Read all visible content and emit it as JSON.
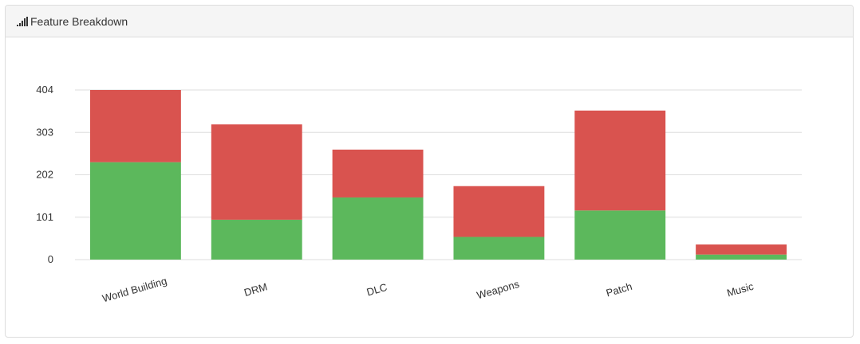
{
  "panel": {
    "title": "Feature Breakdown",
    "icon": "signal-bars-icon"
  },
  "colors": {
    "positive": "#5cb85c",
    "negative": "#d9534f",
    "grid": "#dddddd",
    "text": "#333333"
  },
  "chart_data": {
    "type": "bar",
    "stacked": true,
    "categories": [
      "World Building",
      "DRM",
      "DLC",
      "Weapons",
      "Patch",
      "Music"
    ],
    "series": [
      {
        "color": "#5cb85c",
        "values": [
          232,
          95,
          148,
          54,
          117,
          12
        ]
      },
      {
        "color": "#d9534f",
        "values": [
          172,
          227,
          114,
          121,
          238,
          24
        ]
      }
    ],
    "yticks": [
      0,
      101,
      202,
      303,
      404
    ],
    "ylim": [
      0,
      404
    ],
    "grid": true,
    "xlabel": "",
    "ylabel": ""
  }
}
